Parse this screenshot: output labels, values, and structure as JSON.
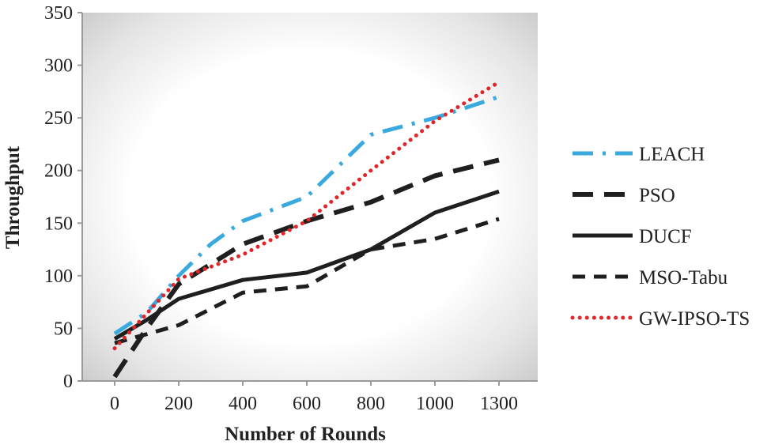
{
  "chart_data": {
    "type": "line",
    "title": "",
    "xlabel": "Number of Rounds",
    "ylabel": "Throughput",
    "categories": [
      "0",
      "200",
      "400",
      "600",
      "800",
      "1000",
      "1300"
    ],
    "ylim": [
      0,
      350
    ],
    "yticks": [
      "0",
      "50",
      "100",
      "150",
      "200",
      "250",
      "300",
      "350"
    ],
    "legend_position": "right",
    "series": [
      {
        "name": "LEACH",
        "color": "#3aa9de",
        "style": "dash-dot",
        "points": [
          [
            0,
            45
          ],
          [
            0.5,
            65
          ],
          [
            1,
            100
          ],
          [
            1.5,
            130
          ],
          [
            2,
            152
          ],
          [
            3,
            175
          ],
          [
            4,
            234
          ],
          [
            5,
            250
          ],
          [
            6,
            270
          ]
        ]
      },
      {
        "name": "PSO",
        "color": "#1f1f1f",
        "style": "dashed",
        "points": [
          [
            0,
            4
          ],
          [
            0.5,
            50
          ],
          [
            1,
            92
          ],
          [
            2,
            130
          ],
          [
            3,
            152
          ],
          [
            4,
            170
          ],
          [
            5,
            195
          ],
          [
            6,
            210
          ]
        ]
      },
      {
        "name": "DUCF",
        "color": "#1f1f1f",
        "style": "solid",
        "points": [
          [
            0,
            40
          ],
          [
            0.5,
            58
          ],
          [
            1,
            78
          ],
          [
            2,
            96
          ],
          [
            3,
            103
          ],
          [
            4,
            125
          ],
          [
            5,
            160
          ],
          [
            6,
            180
          ]
        ]
      },
      {
        "name": "MSO-Tabu",
        "color": "#1f1f1f",
        "style": "short-dash",
        "points": [
          [
            0,
            36
          ],
          [
            1,
            53
          ],
          [
            2,
            84
          ],
          [
            3,
            90
          ],
          [
            4,
            125
          ],
          [
            5,
            135
          ],
          [
            6,
            154
          ]
        ]
      },
      {
        "name": "GW-IPSO-TS",
        "color": "#e0262a",
        "style": "dotted",
        "points": [
          [
            0,
            31
          ],
          [
            1,
            97
          ],
          [
            2,
            120
          ],
          [
            3,
            152
          ],
          [
            4,
            200
          ],
          [
            5,
            247
          ],
          [
            6,
            284
          ]
        ]
      }
    ]
  }
}
